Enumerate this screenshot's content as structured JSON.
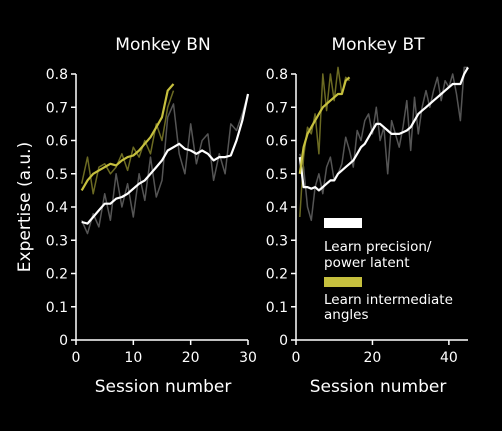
{
  "chart_data": [
    {
      "type": "line",
      "title": "Monkey BN",
      "xlabel": "Session number",
      "ylabel": "Expertise (a.u.)",
      "xlim": [
        0,
        30
      ],
      "ylim": [
        0,
        0.8
      ],
      "xticks": [
        "0",
        "10",
        "20",
        "30"
      ],
      "yticks": [
        "0",
        "0.1",
        "0.2",
        "0.3",
        "0.4",
        "0.5",
        "0.6",
        "0.7",
        "0.8"
      ],
      "series": [
        {
          "name": "Learn precision/ power latent (raw)",
          "color": "#555555",
          "x": [
            1,
            2,
            3,
            4,
            5,
            6,
            7,
            8,
            9,
            10,
            11,
            12,
            13,
            14,
            15,
            16,
            17,
            18,
            19,
            20,
            21,
            22,
            23,
            24,
            25,
            26,
            27,
            28,
            29,
            30
          ],
          "y": [
            0.36,
            0.32,
            0.38,
            0.34,
            0.44,
            0.36,
            0.5,
            0.4,
            0.47,
            0.37,
            0.5,
            0.42,
            0.55,
            0.43,
            0.48,
            0.67,
            0.71,
            0.56,
            0.5,
            0.65,
            0.53,
            0.6,
            0.62,
            0.48,
            0.56,
            0.5,
            0.65,
            0.63,
            0.68,
            0.74
          ]
        },
        {
          "name": "Learn intermediate angles (raw)",
          "color": "#6b6a22",
          "x": [
            1,
            2,
            3,
            4,
            5,
            6,
            7,
            8,
            9,
            10,
            11,
            12,
            13,
            14,
            15,
            16,
            17
          ],
          "y": [
            0.47,
            0.55,
            0.44,
            0.52,
            0.53,
            0.5,
            0.52,
            0.56,
            0.51,
            0.58,
            0.55,
            0.6,
            0.56,
            0.65,
            0.6,
            0.7,
            0.75
          ]
        },
        {
          "name": "Learn precision/ power latent",
          "color": "#ffffff",
          "x": [
            1,
            2,
            3,
            4,
            5,
            6,
            7,
            8,
            9,
            10,
            11,
            12,
            13,
            14,
            15,
            16,
            17,
            18,
            19,
            20,
            21,
            22,
            23,
            24,
            25,
            26,
            27,
            28,
            29,
            30
          ],
          "y": [
            0.355,
            0.35,
            0.37,
            0.39,
            0.41,
            0.41,
            0.425,
            0.43,
            0.44,
            0.455,
            0.47,
            0.48,
            0.5,
            0.52,
            0.54,
            0.57,
            0.58,
            0.59,
            0.575,
            0.57,
            0.56,
            0.57,
            0.56,
            0.54,
            0.55,
            0.55,
            0.555,
            0.6,
            0.66,
            0.74
          ]
        },
        {
          "name": "Learn intermediate angles",
          "color": "#c6c03e",
          "x": [
            1,
            2,
            3,
            4,
            5,
            6,
            7,
            8,
            9,
            10,
            11,
            12,
            13,
            14,
            15,
            16,
            17
          ],
          "y": [
            0.45,
            0.48,
            0.5,
            0.51,
            0.52,
            0.53,
            0.525,
            0.54,
            0.55,
            0.555,
            0.57,
            0.59,
            0.61,
            0.64,
            0.67,
            0.75,
            0.77
          ]
        }
      ]
    },
    {
      "type": "line",
      "title": "Monkey BT",
      "xlabel": "Session number",
      "ylabel": "",
      "xlim": [
        0,
        45
      ],
      "ylim": [
        0,
        0.8
      ],
      "xticks": [
        "0",
        "20",
        "40"
      ],
      "yticks": [
        "0",
        "0.1",
        "0.2",
        "0.3",
        "0.4",
        "0.5",
        "0.6",
        "0.7",
        "0.8"
      ],
      "series": [
        {
          "name": "Learn precision/ power latent (raw)",
          "color": "#555555",
          "x": [
            1,
            2,
            3,
            4,
            5,
            6,
            7,
            8,
            9,
            10,
            11,
            12,
            13,
            14,
            15,
            16,
            17,
            18,
            19,
            20,
            21,
            22,
            23,
            24,
            25,
            26,
            27,
            28,
            29,
            30,
            31,
            32,
            33,
            34,
            35,
            36,
            37,
            38,
            39,
            40,
            41,
            42,
            43,
            44,
            45
          ],
          "y": [
            0.56,
            0.52,
            0.4,
            0.36,
            0.46,
            0.5,
            0.44,
            0.52,
            0.55,
            0.48,
            0.5,
            0.53,
            0.61,
            0.57,
            0.52,
            0.63,
            0.6,
            0.66,
            0.68,
            0.62,
            0.7,
            0.6,
            0.64,
            0.5,
            0.66,
            0.62,
            0.58,
            0.64,
            0.72,
            0.57,
            0.73,
            0.62,
            0.7,
            0.75,
            0.7,
            0.75,
            0.79,
            0.72,
            0.78,
            0.76,
            0.8,
            0.74,
            0.66,
            0.82,
            0.82
          ]
        },
        {
          "name": "Learn intermediate angles (raw)",
          "color": "#6b6a22",
          "x": [
            1,
            2,
            3,
            4,
            5,
            6,
            7,
            8,
            9,
            10,
            11,
            12,
            13,
            14
          ],
          "y": [
            0.37,
            0.55,
            0.64,
            0.62,
            0.68,
            0.56,
            0.8,
            0.69,
            0.8,
            0.72,
            0.82,
            0.74,
            0.79,
            0.78
          ]
        },
        {
          "name": "Learn precision/ power latent",
          "color": "#ffffff",
          "x": [
            1,
            2,
            3,
            4,
            5,
            6,
            7,
            8,
            9,
            10,
            11,
            12,
            13,
            14,
            15,
            16,
            17,
            18,
            19,
            20,
            21,
            22,
            23,
            24,
            25,
            26,
            27,
            28,
            29,
            30,
            31,
            32,
            33,
            34,
            35,
            36,
            37,
            38,
            39,
            40,
            41,
            42,
            43,
            44,
            45
          ],
          "y": [
            0.55,
            0.46,
            0.46,
            0.455,
            0.46,
            0.45,
            0.46,
            0.47,
            0.48,
            0.48,
            0.5,
            0.51,
            0.52,
            0.53,
            0.54,
            0.56,
            0.58,
            0.59,
            0.61,
            0.63,
            0.65,
            0.65,
            0.64,
            0.63,
            0.62,
            0.62,
            0.62,
            0.625,
            0.63,
            0.64,
            0.66,
            0.68,
            0.69,
            0.7,
            0.71,
            0.72,
            0.73,
            0.74,
            0.75,
            0.76,
            0.77,
            0.77,
            0.77,
            0.8,
            0.82
          ]
        },
        {
          "name": "Learn intermediate angles",
          "color": "#c6c03e",
          "x": [
            1,
            2,
            3,
            4,
            5,
            6,
            7,
            8,
            9,
            10,
            11,
            12,
            13,
            14
          ],
          "y": [
            0.5,
            0.58,
            0.62,
            0.64,
            0.66,
            0.68,
            0.7,
            0.71,
            0.72,
            0.73,
            0.74,
            0.74,
            0.78,
            0.79
          ]
        }
      ]
    }
  ],
  "legend": [
    {
      "label": "Learn precision/\npower latent",
      "color": "#ffffff"
    },
    {
      "label": "Learn intermediate\nangles",
      "color": "#c6c03e"
    }
  ]
}
